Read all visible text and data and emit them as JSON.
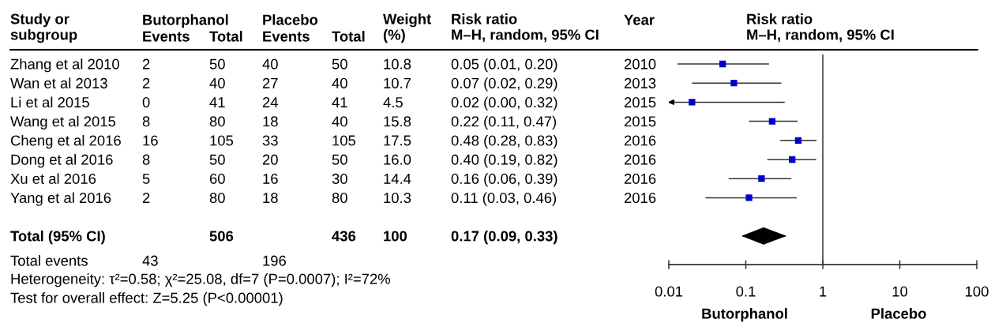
{
  "chart_data": {
    "type": "scatter",
    "orientation": "horizontal",
    "title": "Risk ratio\nM–H, random, 95% CI",
    "categories": [
      null,
      null,
      null,
      null,
      null,
      null,
      null,
      null,
      null,
      null,
      null
    ],
    "series": [
      {
        "marker": "square",
        "color": "#0000cc",
        "values": [
          0.05,
          0.07,
          0.02,
          0.22,
          0.48,
          0.4,
          0.16,
          0.11,
          null,
          null,
          null
        ],
        "errors": [
          [
            0.013,
            0.2
          ],
          [
            0.02,
            0.29
          ],
          [
            0.01,
            0.32
          ],
          [
            0.11,
            0.47
          ],
          [
            0.28,
            0.83
          ],
          [
            0.19,
            0.82
          ],
          [
            0.06,
            0.39
          ],
          [
            0.03,
            0.46
          ],
          null,
          null,
          null
        ]
      },
      {
        "marker": "diamond",
        "color": "#000000",
        "values": [
          null,
          null,
          null,
          null,
          null,
          null,
          null,
          null,
          null,
          0.17,
          null
        ],
        "errors": [
          null,
          null,
          null,
          null,
          null,
          null,
          null,
          null,
          null,
          [
            0.09,
            0.33
          ],
          null
        ]
      }
    ],
    "log": "x",
    "xlim": [
      0.01,
      100
    ],
    "xticks": [
      0.01,
      0.1,
      1,
      10,
      100
    ],
    "ref_lines": [
      {
        "axis": "x",
        "value": 1,
        "color": "#555555"
      }
    ],
    "annotations": [
      "Study or\nsubgroup",
      "Butorphanol",
      "Events",
      "Total",
      "Placebo",
      "Events",
      "Total",
      "Weight\n(%)",
      "Risk ratio\nM–H, random, 95% CI",
      "Year",
      "Zhang et al 2010",
      "2",
      "50",
      "40",
      "50",
      "10.8",
      "0.05 (0.01, 0.20)",
      "2010",
      "Wan et al 2013",
      "2",
      "40",
      "27",
      "40",
      "10.7",
      "0.07 (0.02, 0.29)",
      "2013",
      "Li et al 2015",
      "0",
      "41",
      "24",
      "41",
      "4.5",
      "0.02 (0.00, 0.32)",
      "2015",
      "Wang et al 2015",
      "8",
      "80",
      "18",
      "40",
      "15.8",
      "0.22 (0.11, 0.47)",
      "2015",
      "Cheng et al 2016",
      "16",
      "105",
      "33",
      "105",
      "17.5",
      "0.48 (0.28, 0.83)",
      "2016",
      "Dong et al 2016",
      "8",
      "50",
      "20",
      "50",
      "16.0",
      "0.40 (0.19, 0.82)",
      "2016",
      "Xu et al 2016",
      "5",
      "60",
      "16",
      "30",
      "14.4",
      "0.16 (0.06, 0.39)",
      "2016",
      "Yang et al 2016",
      "2",
      "80",
      "18",
      "80",
      "10.3",
      "0.11 (0.03, 0.46)",
      "2016",
      "Total (95% CI)",
      "506",
      "436",
      "100",
      "0.17 (0.09, 0.33)",
      "Total events",
      "43",
      "196",
      "Heterogeneity: τ²=0.58; χ²=25.08, df=7 (P=0.0007); I²=72%",
      "Test for overall effect: Z=5.25 (P<0.00001)",
      "Butorphanol",
      "Placebo"
    ]
  }
}
